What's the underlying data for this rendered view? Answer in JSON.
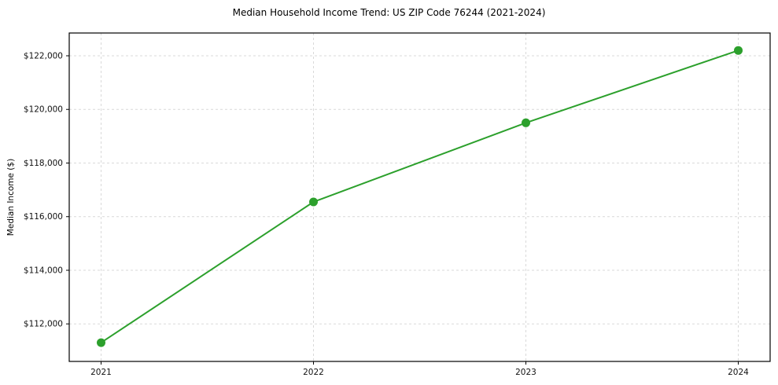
{
  "chart_data": {
    "type": "line",
    "title": "Median Household Income Trend: US ZIP Code 76244 (2021-2024)",
    "xlabel": "",
    "ylabel": "Median Income ($)",
    "x": [
      2021,
      2022,
      2023,
      2024
    ],
    "series": [
      {
        "name": "Median Household Income",
        "values": [
          111300,
          116550,
          119500,
          122200
        ]
      }
    ],
    "xticks": [
      2021,
      2022,
      2023,
      2024
    ],
    "xtick_labels": [
      "2021",
      "2022",
      "2023",
      "2024"
    ],
    "yticks": [
      112000,
      114000,
      116000,
      118000,
      120000,
      122000
    ],
    "ytick_labels": [
      "$112,000",
      "$114,000",
      "$116,000",
      "$118,000",
      "$120,000",
      "$122,000"
    ],
    "xlim": [
      2020.85,
      2024.15
    ],
    "ylim": [
      110600,
      122850
    ],
    "grid": true,
    "legend_position": "none",
    "line_color": "#2ca02c",
    "marker": "circle",
    "grid_color": "#d9d9d9",
    "axis_color": "#000000",
    "text_color": "#111111",
    "background_color": "#ffffff"
  }
}
